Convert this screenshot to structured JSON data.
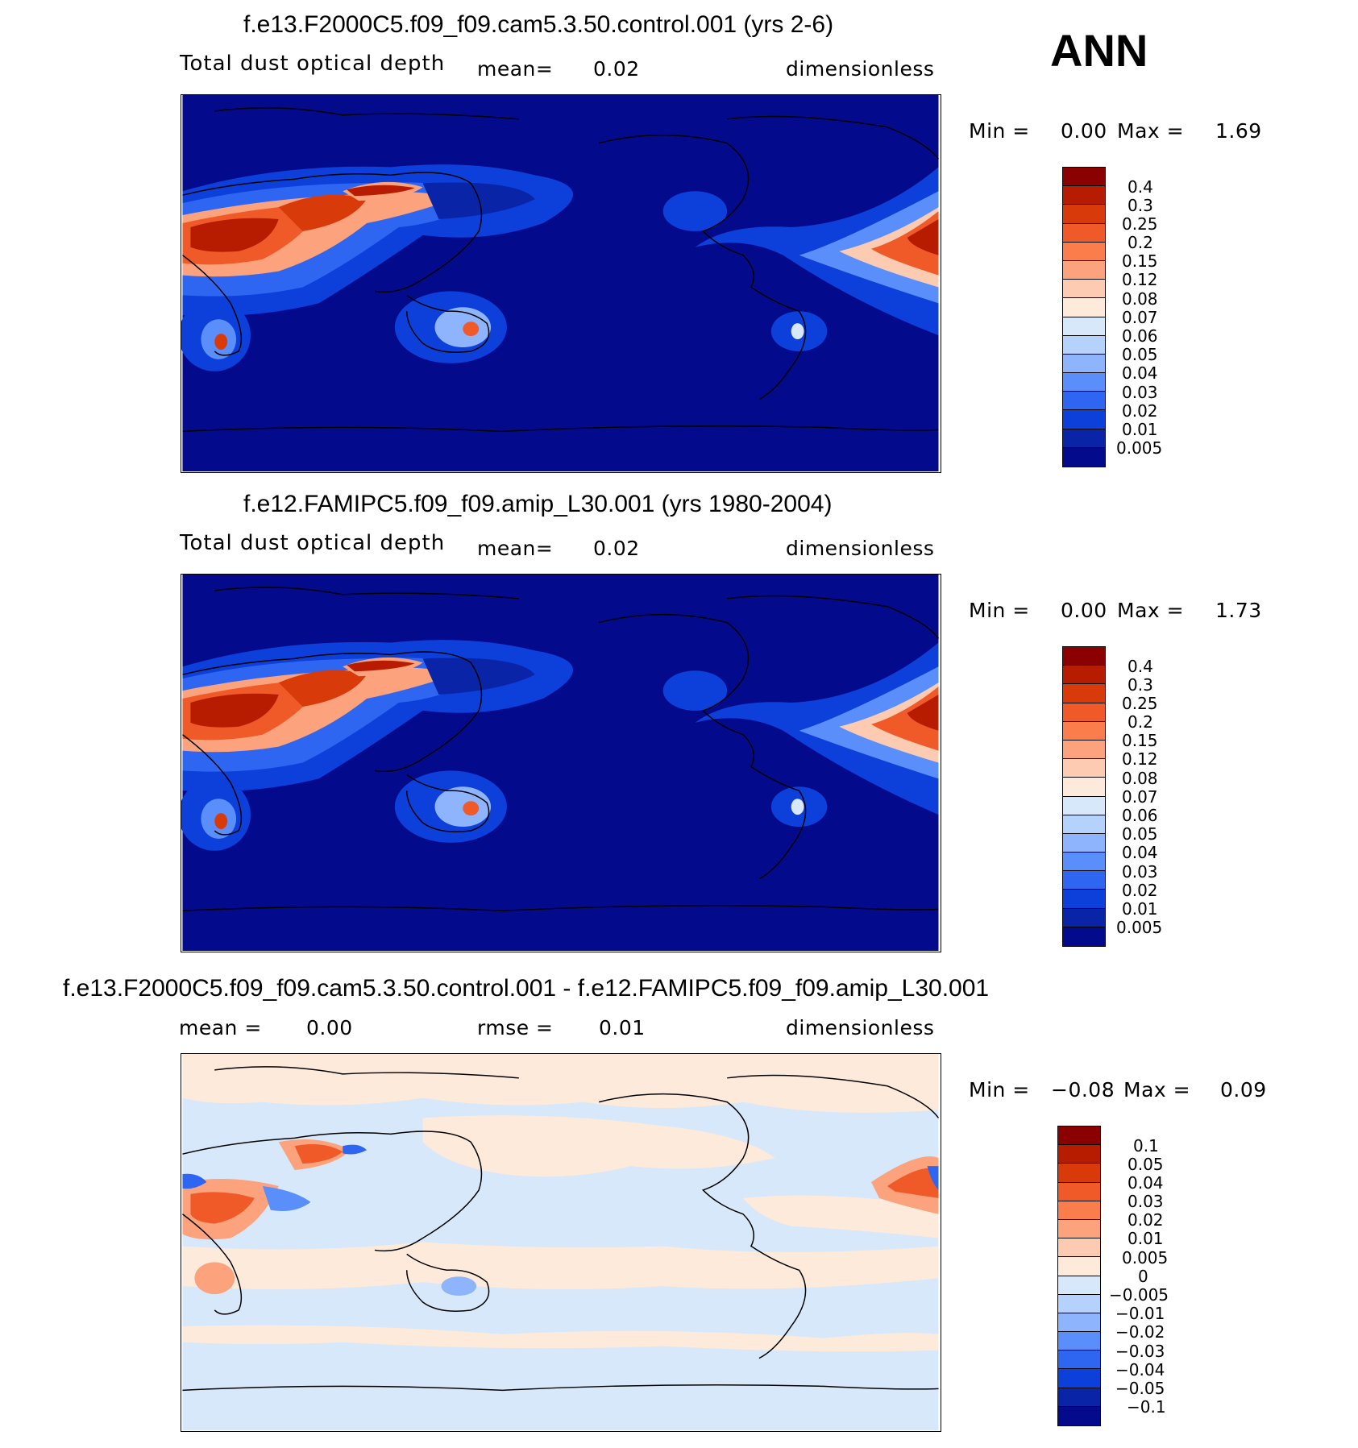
{
  "season": "ANN",
  "panels": [
    {
      "title": "f.e13.F2000C5.f09_f09.cam5.3.50.control.001 (yrs 2-6)",
      "variable": "Total dust optical depth",
      "mean_label": "mean=",
      "mean_value": "0.02",
      "units": "dimensionless",
      "min_label": "Min =",
      "min_value": "0.00",
      "max_label": "Max =",
      "max_value": "1.69",
      "colorbar": {
        "labels": [
          "0.4",
          "0.3",
          "0.25",
          "0.2",
          "0.15",
          "0.12",
          "0.08",
          "0.07",
          "0.06",
          "0.05",
          "0.04",
          "0.03",
          "0.02",
          "0.01",
          "0.005"
        ],
        "colors": [
          "#8b0000",
          "#b81c00",
          "#d93a0a",
          "#ef5a28",
          "#fb7d4c",
          "#fca27c",
          "#fdcbb2",
          "#fdeadb",
          "#d7e8fa",
          "#b5d2fc",
          "#8db4fd",
          "#5a8efa",
          "#2e66f2",
          "#0d3fda",
          "#0a24a8",
          "#040a8c"
        ]
      },
      "map_fill": "#040a8c"
    },
    {
      "title": "f.e12.FAMIPC5.f09_f09.amip_L30.001 (yrs 1980-2004)",
      "variable": "Total dust optical depth",
      "mean_label": "mean=",
      "mean_value": "0.02",
      "units": "dimensionless",
      "min_label": "Min =",
      "min_value": "0.00",
      "max_label": "Max =",
      "max_value": "1.73",
      "colorbar": {
        "labels": [
          "0.4",
          "0.3",
          "0.25",
          "0.2",
          "0.15",
          "0.12",
          "0.08",
          "0.07",
          "0.06",
          "0.05",
          "0.04",
          "0.03",
          "0.02",
          "0.01",
          "0.005"
        ],
        "colors": [
          "#8b0000",
          "#b81c00",
          "#d93a0a",
          "#ef5a28",
          "#fb7d4c",
          "#fca27c",
          "#fdcbb2",
          "#fdeadb",
          "#d7e8fa",
          "#b5d2fc",
          "#8db4fd",
          "#5a8efa",
          "#2e66f2",
          "#0d3fda",
          "#0a24a8",
          "#040a8c"
        ]
      },
      "map_fill": "#040a8c"
    },
    {
      "title": "f.e13.F2000C5.f09_f09.cam5.3.50.control.001 - f.e12.FAMIPC5.f09_f09.amip_L30.001",
      "mean_label": "mean =",
      "mean_value": "0.00",
      "rmse_label": "rmse =",
      "rmse_value": "0.01",
      "units": "dimensionless",
      "min_label": "Min =",
      "min_value": "−0.08",
      "max_label": "Max =",
      "max_value": "0.09",
      "colorbar": {
        "labels": [
          "0.1",
          "0.05",
          "0.04",
          "0.03",
          "0.02",
          "0.01",
          "0.005",
          "0",
          "−0.005",
          "−0.01",
          "−0.02",
          "−0.03",
          "−0.04",
          "−0.05",
          "−0.1"
        ],
        "colors": [
          "#8b0000",
          "#b81c00",
          "#d93a0a",
          "#ef5a28",
          "#fb7d4c",
          "#fca27c",
          "#fdcbb2",
          "#fdeadb",
          "#d7e8fa",
          "#b5d2fc",
          "#8db4fd",
          "#5a8efa",
          "#2e66f2",
          "#0d3fda",
          "#0a24a8",
          "#040a8c"
        ]
      },
      "map_fill": "#d7e8fa"
    }
  ]
}
